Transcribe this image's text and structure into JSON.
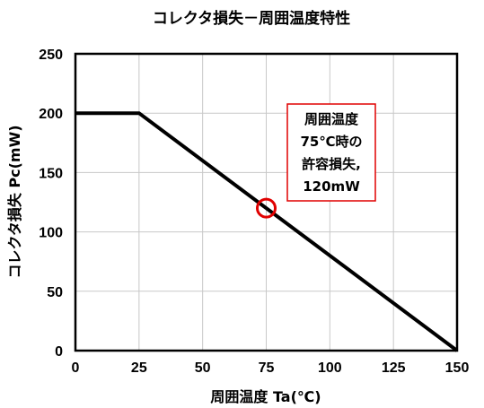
{
  "chart_data": {
    "type": "line",
    "title": "コレクタ損失－周囲温度特性",
    "xlabel": "周囲温度 Ta(℃)",
    "ylabel": "コレクタ損失 Pc(mW)",
    "xlim": [
      0,
      150
    ],
    "ylim": [
      0,
      250
    ],
    "x_ticks": [
      0,
      25,
      50,
      75,
      100,
      125,
      150
    ],
    "y_ticks": [
      0,
      50,
      100,
      150,
      200,
      250
    ],
    "grid": true,
    "series": [
      {
        "x": [
          0,
          25,
          150
        ],
        "y": [
          200,
          200,
          0
        ]
      }
    ],
    "highlight_point": {
      "x": 75,
      "y": 120
    },
    "annotation": {
      "lines": [
        "周囲温度",
        "75℃時の",
        "許容損失,",
        "120mW"
      ]
    },
    "colors": {
      "line": "#000000",
      "highlight": "#e00000",
      "grid": "#c8c8c8"
    }
  }
}
